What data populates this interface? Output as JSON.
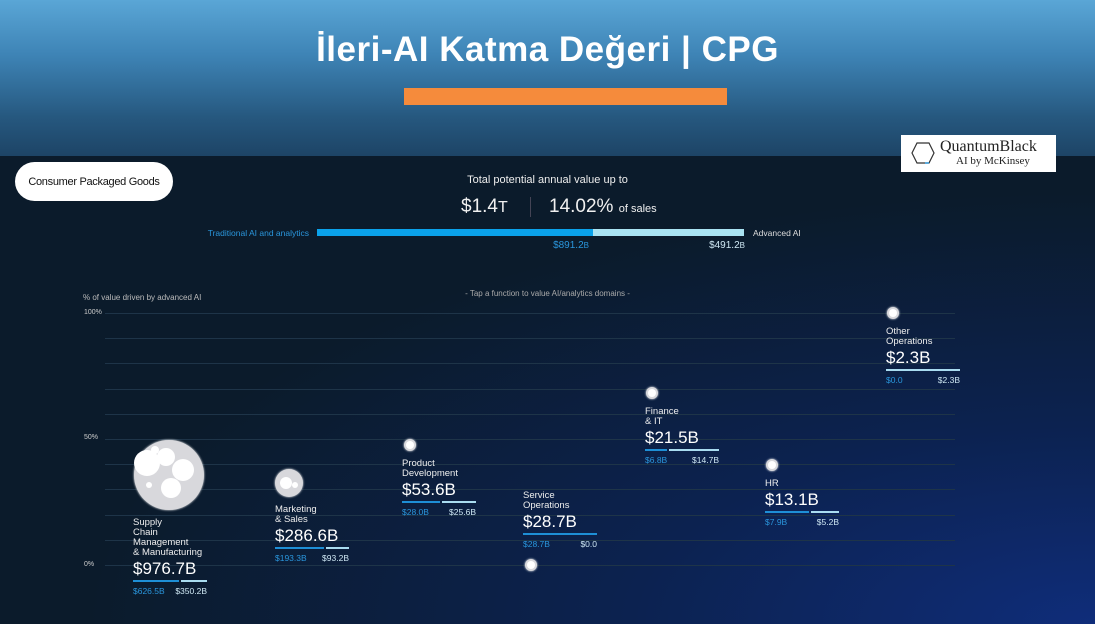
{
  "header": {
    "title": "İleri-AI Katma Değeri | CPG",
    "accent": "#f58b3c"
  },
  "logo": {
    "line1": "QuantumBlack",
    "line2": "AI by McKinsey"
  },
  "industry_pill": "Consumer Packaged Goods",
  "summary": {
    "label": "Total potential annual value up to",
    "total": "$1.4",
    "total_unit": "T",
    "pct": "14.02%",
    "pct_suffix": "of sales",
    "traditional_label": "Traditional AI and analytics",
    "advanced_label": "Advanced AI",
    "traditional_value": "$891.2",
    "advanced_value": "$491.2",
    "value_unit": "B",
    "traditional_share": 64.5
  },
  "chart": {
    "ylabel": "% of value driven by advanced AI",
    "hint": "- Tap a function to value AI/analytics domains -",
    "ticks": [
      "100%",
      "50%",
      "0%"
    ]
  },
  "functions": [
    {
      "name": "Supply\nChain\nManagement\n& Manufacturing",
      "total": "$976.7B",
      "traditional": "$626.5B",
      "advanced": "$350.2B",
      "trad_num": 626.5,
      "adv_num": 350.2
    },
    {
      "name": "Marketing\n& Sales",
      "total": "$286.6B",
      "traditional": "$193.3B",
      "advanced": "$93.2B",
      "trad_num": 193.3,
      "adv_num": 93.2
    },
    {
      "name": "Product\nDevelopment",
      "total": "$53.6B",
      "traditional": "$28.0B",
      "advanced": "$25.6B",
      "trad_num": 28.0,
      "adv_num": 25.6
    },
    {
      "name": "Service\nOperations",
      "total": "$28.7B",
      "traditional": "$28.7B",
      "advanced": "$0.0",
      "trad_num": 28.7,
      "adv_num": 0
    },
    {
      "name": "Finance\n& IT",
      "total": "$21.5B",
      "traditional": "$6.8B",
      "advanced": "$14.7B",
      "trad_num": 6.8,
      "adv_num": 14.7
    },
    {
      "name": "HR",
      "total": "$13.1B",
      "traditional": "$7.9B",
      "advanced": "$5.2B",
      "trad_num": 7.9,
      "adv_num": 5.2
    },
    {
      "name": "Other\nOperations",
      "total": "$2.3B",
      "traditional": "$0.0",
      "advanced": "$2.3B",
      "trad_num": 0,
      "adv_num": 2.3
    }
  ]
}
